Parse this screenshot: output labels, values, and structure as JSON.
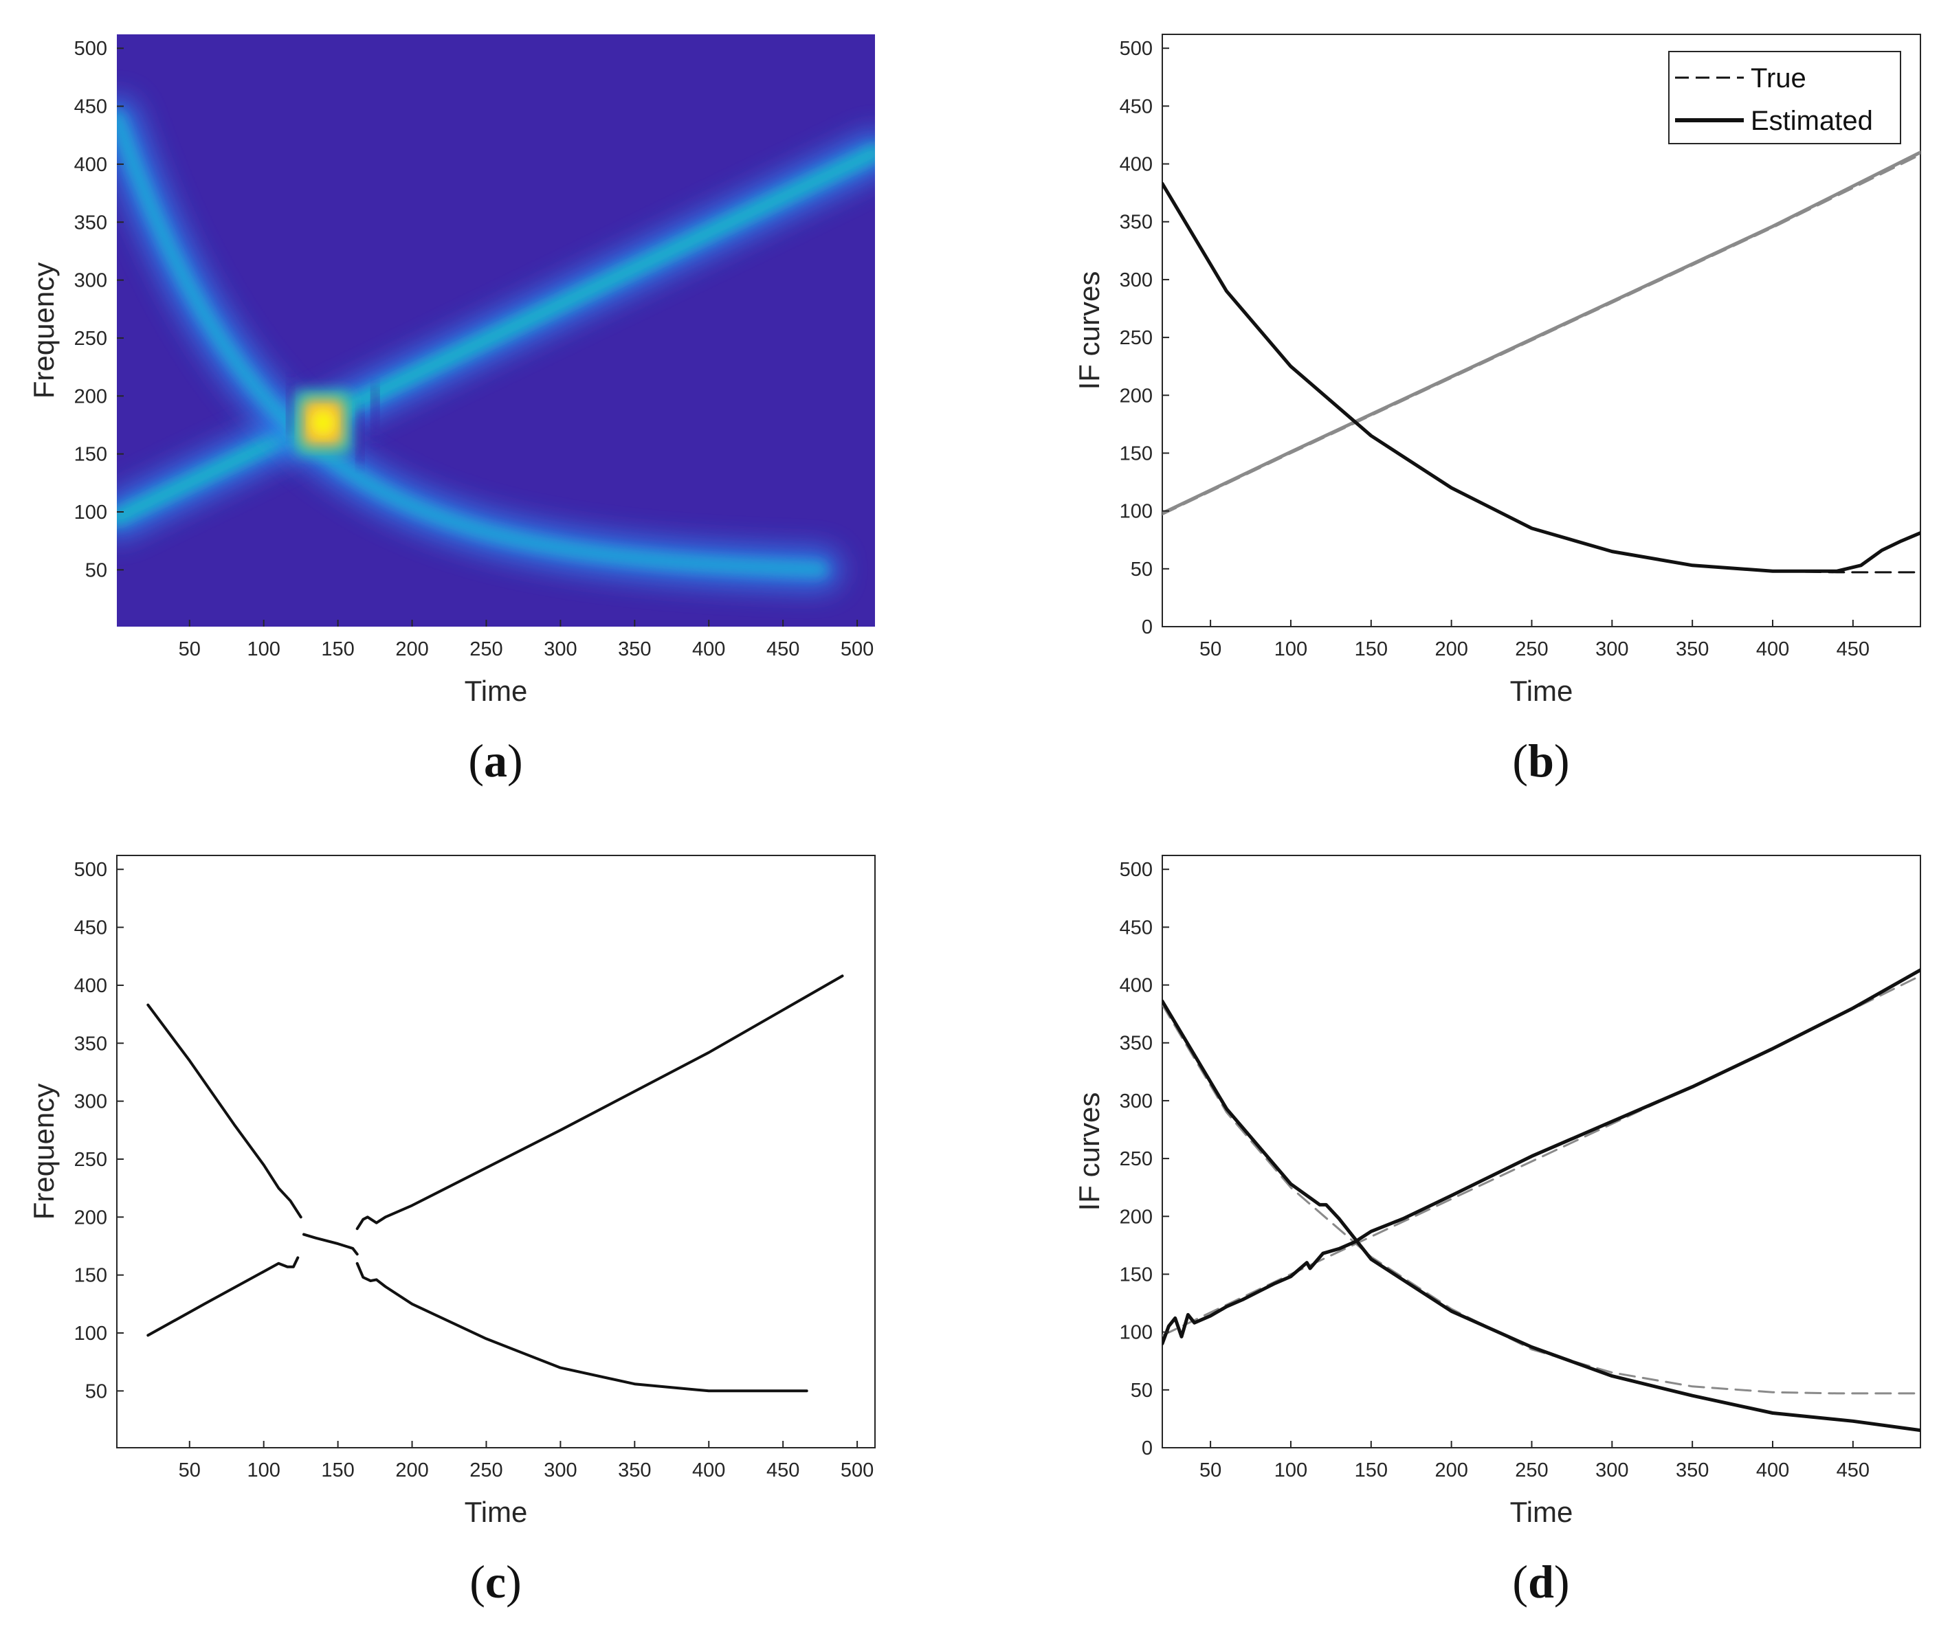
{
  "chart_data": [
    {
      "id": "a",
      "type": "heatmap",
      "panel_label": "a",
      "xlabel": "Time",
      "ylabel": "Frequency",
      "xlim": [
        1,
        512
      ],
      "ylim": [
        1,
        512
      ],
      "xticks": [
        50,
        100,
        150,
        200,
        250,
        300,
        350,
        400,
        450,
        500
      ],
      "yticks": [
        50,
        100,
        150,
        200,
        250,
        300,
        350,
        400,
        450,
        500
      ],
      "colormap": "parula",
      "components": [
        {
          "name": "increasing linear chirp",
          "start": [
            1,
            95
          ],
          "end": [
            512,
            410
          ]
        },
        {
          "name": "decreasing curved chirp",
          "start": [
            1,
            440
          ],
          "end": [
            475,
            48
          ]
        }
      ],
      "peak": {
        "time": 140,
        "frequency": 177
      }
    },
    {
      "id": "b",
      "type": "line",
      "panel_label": "b",
      "xlabel": "Time",
      "ylabel": "IF curves",
      "xlim": [
        20,
        492
      ],
      "ylim": [
        0,
        512
      ],
      "xticks": [
        50,
        100,
        150,
        200,
        250,
        300,
        350,
        400,
        450
      ],
      "yticks": [
        0,
        50,
        100,
        150,
        200,
        250,
        300,
        350,
        400,
        450,
        500
      ],
      "legend": {
        "position": "top-right",
        "entries": [
          "True",
          "Estimated"
        ]
      },
      "series": [
        {
          "name": "True",
          "component": 1,
          "style": "dashed",
          "color": "#8a8a8a",
          "x": [
            20,
            100,
            200,
            300,
            400,
            492
          ],
          "y": [
            97,
            150,
            215,
            280,
            345,
            408
          ]
        },
        {
          "name": "Estimated",
          "component": 1,
          "style": "solid",
          "color": "#8a8a8a",
          "x": [
            20,
            100,
            200,
            300,
            400,
            492
          ],
          "y": [
            98,
            151,
            216,
            281,
            346,
            410
          ]
        },
        {
          "name": "True",
          "component": 2,
          "style": "dashed",
          "color": "#111111",
          "x": [
            20,
            60,
            100,
            150,
            200,
            250,
            300,
            350,
            400,
            440,
            492
          ],
          "y": [
            383,
            290,
            225,
            165,
            120,
            85,
            65,
            53,
            48,
            47,
            47
          ]
        },
        {
          "name": "Estimated",
          "component": 2,
          "style": "solid",
          "color": "#111111",
          "x": [
            20,
            60,
            100,
            150,
            200,
            250,
            300,
            350,
            400,
            440,
            455,
            468,
            480,
            492
          ],
          "y": [
            383,
            290,
            225,
            165,
            120,
            85,
            65,
            53,
            48,
            48,
            53,
            66,
            74,
            81
          ]
        }
      ]
    },
    {
      "id": "c",
      "type": "line",
      "panel_label": "c",
      "xlabel": "Time",
      "ylabel": "Frequency",
      "xlim": [
        1,
        512
      ],
      "ylim": [
        1,
        512
      ],
      "xticks": [
        50,
        100,
        150,
        200,
        250,
        300,
        350,
        400,
        450,
        500
      ],
      "yticks": [
        50,
        100,
        150,
        200,
        250,
        300,
        350,
        400,
        450,
        500
      ],
      "series": [
        {
          "name": "ridge 1",
          "x": [
            22,
            60,
            100,
            110,
            116,
            120,
            123
          ],
          "y": [
            98,
            125,
            153,
            160,
            157,
            157,
            165
          ]
        },
        {
          "name": "ridge 2",
          "x": [
            22,
            50,
            80,
            100,
            110,
            118,
            125
          ],
          "y": [
            383,
            335,
            280,
            245,
            225,
            214,
            200
          ]
        },
        {
          "name": "crossing",
          "x": [
            127,
            135,
            150,
            160,
            163
          ],
          "y": [
            185,
            182,
            177,
            173,
            168
          ]
        },
        {
          "name": "ridge 3",
          "x": [
            163,
            167,
            170,
            176,
            182,
            200,
            300,
            400,
            490
          ],
          "y": [
            190,
            198,
            200,
            195,
            200,
            210,
            275,
            342,
            408
          ]
        },
        {
          "name": "ridge 4",
          "x": [
            163,
            167,
            172,
            176,
            182,
            200,
            250,
            300,
            350,
            400,
            430,
            466
          ],
          "y": [
            160,
            148,
            145,
            146,
            140,
            125,
            95,
            70,
            56,
            50,
            50,
            50
          ]
        }
      ]
    },
    {
      "id": "d",
      "type": "line",
      "panel_label": "d",
      "xlabel": "Time",
      "ylabel": "IF curves",
      "xlim": [
        20,
        492
      ],
      "ylim": [
        0,
        512
      ],
      "xticks": [
        50,
        100,
        150,
        200,
        250,
        300,
        350,
        400,
        450
      ],
      "yticks": [
        0,
        50,
        100,
        150,
        200,
        250,
        300,
        350,
        400,
        450,
        500
      ],
      "series": [
        {
          "name": "True",
          "component": 1,
          "style": "dashed",
          "color": "#8a8a8a",
          "x": [
            20,
            100,
            200,
            300,
            400,
            492
          ],
          "y": [
            97,
            150,
            215,
            280,
            345,
            408
          ]
        },
        {
          "name": "True",
          "component": 2,
          "style": "dashed",
          "color": "#8a8a8a",
          "x": [
            20,
            60,
            100,
            150,
            200,
            250,
            300,
            350,
            400,
            440,
            492
          ],
          "y": [
            383,
            290,
            225,
            165,
            120,
            85,
            65,
            53,
            48,
            47,
            47
          ]
        },
        {
          "name": "Estimated",
          "component": 1,
          "style": "solid",
          "color": "#111111",
          "x": [
            20,
            24,
            28,
            32,
            36,
            40,
            50,
            60,
            70,
            80,
            90,
            100,
            110,
            112,
            120,
            130,
            140,
            150,
            170,
            200,
            250,
            300,
            350,
            400,
            450,
            492
          ],
          "y": [
            90,
            105,
            112,
            96,
            115,
            108,
            114,
            122,
            128,
            135,
            142,
            148,
            160,
            155,
            168,
            172,
            178,
            187,
            198,
            218,
            252,
            282,
            312,
            345,
            380,
            413
          ]
        },
        {
          "name": "Estimated",
          "component": 2,
          "style": "solid",
          "color": "#111111",
          "x": [
            20,
            60,
            100,
            118,
            122,
            130,
            150,
            200,
            250,
            300,
            350,
            400,
            450,
            492
          ],
          "y": [
            386,
            293,
            228,
            210,
            210,
            198,
            163,
            118,
            87,
            62,
            45,
            30,
            23,
            15
          ]
        }
      ]
    }
  ]
}
